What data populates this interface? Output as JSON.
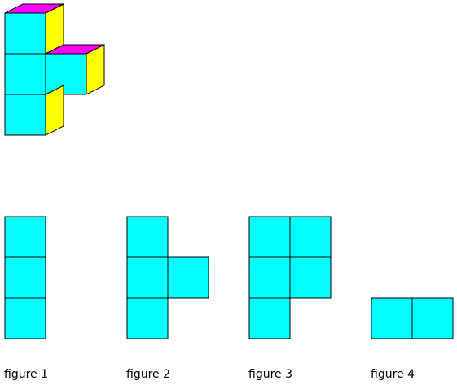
{
  "colors": {
    "front": "#00ffff",
    "top": "#ff00ff",
    "side": "#ffff00",
    "edge": "#000000"
  },
  "solid": {
    "cubes": [
      {
        "col": 0,
        "row": 0,
        "top_face": true,
        "right_face": true
      },
      {
        "col": 0,
        "row": 1,
        "top_face": false,
        "right_face": false
      },
      {
        "col": 1,
        "row": 1,
        "top_face": true,
        "right_face": true
      },
      {
        "col": 0,
        "row": 2,
        "top_face": false,
        "right_face": true
      }
    ]
  },
  "figures": [
    {
      "label": "figure 1",
      "cells": [
        [
          0,
          0
        ],
        [
          0,
          1
        ],
        [
          0,
          2
        ]
      ]
    },
    {
      "label": "figure 2",
      "cells": [
        [
          0,
          0
        ],
        [
          0,
          1
        ],
        [
          1,
          1
        ],
        [
          0,
          2
        ]
      ]
    },
    {
      "label": "figure 3",
      "cells": [
        [
          0,
          0
        ],
        [
          1,
          0
        ],
        [
          0,
          1
        ],
        [
          1,
          1
        ],
        [
          0,
          2
        ]
      ]
    },
    {
      "label": "figure 4",
      "cells": [
        [
          0,
          2
        ],
        [
          1,
          2
        ]
      ]
    }
  ]
}
